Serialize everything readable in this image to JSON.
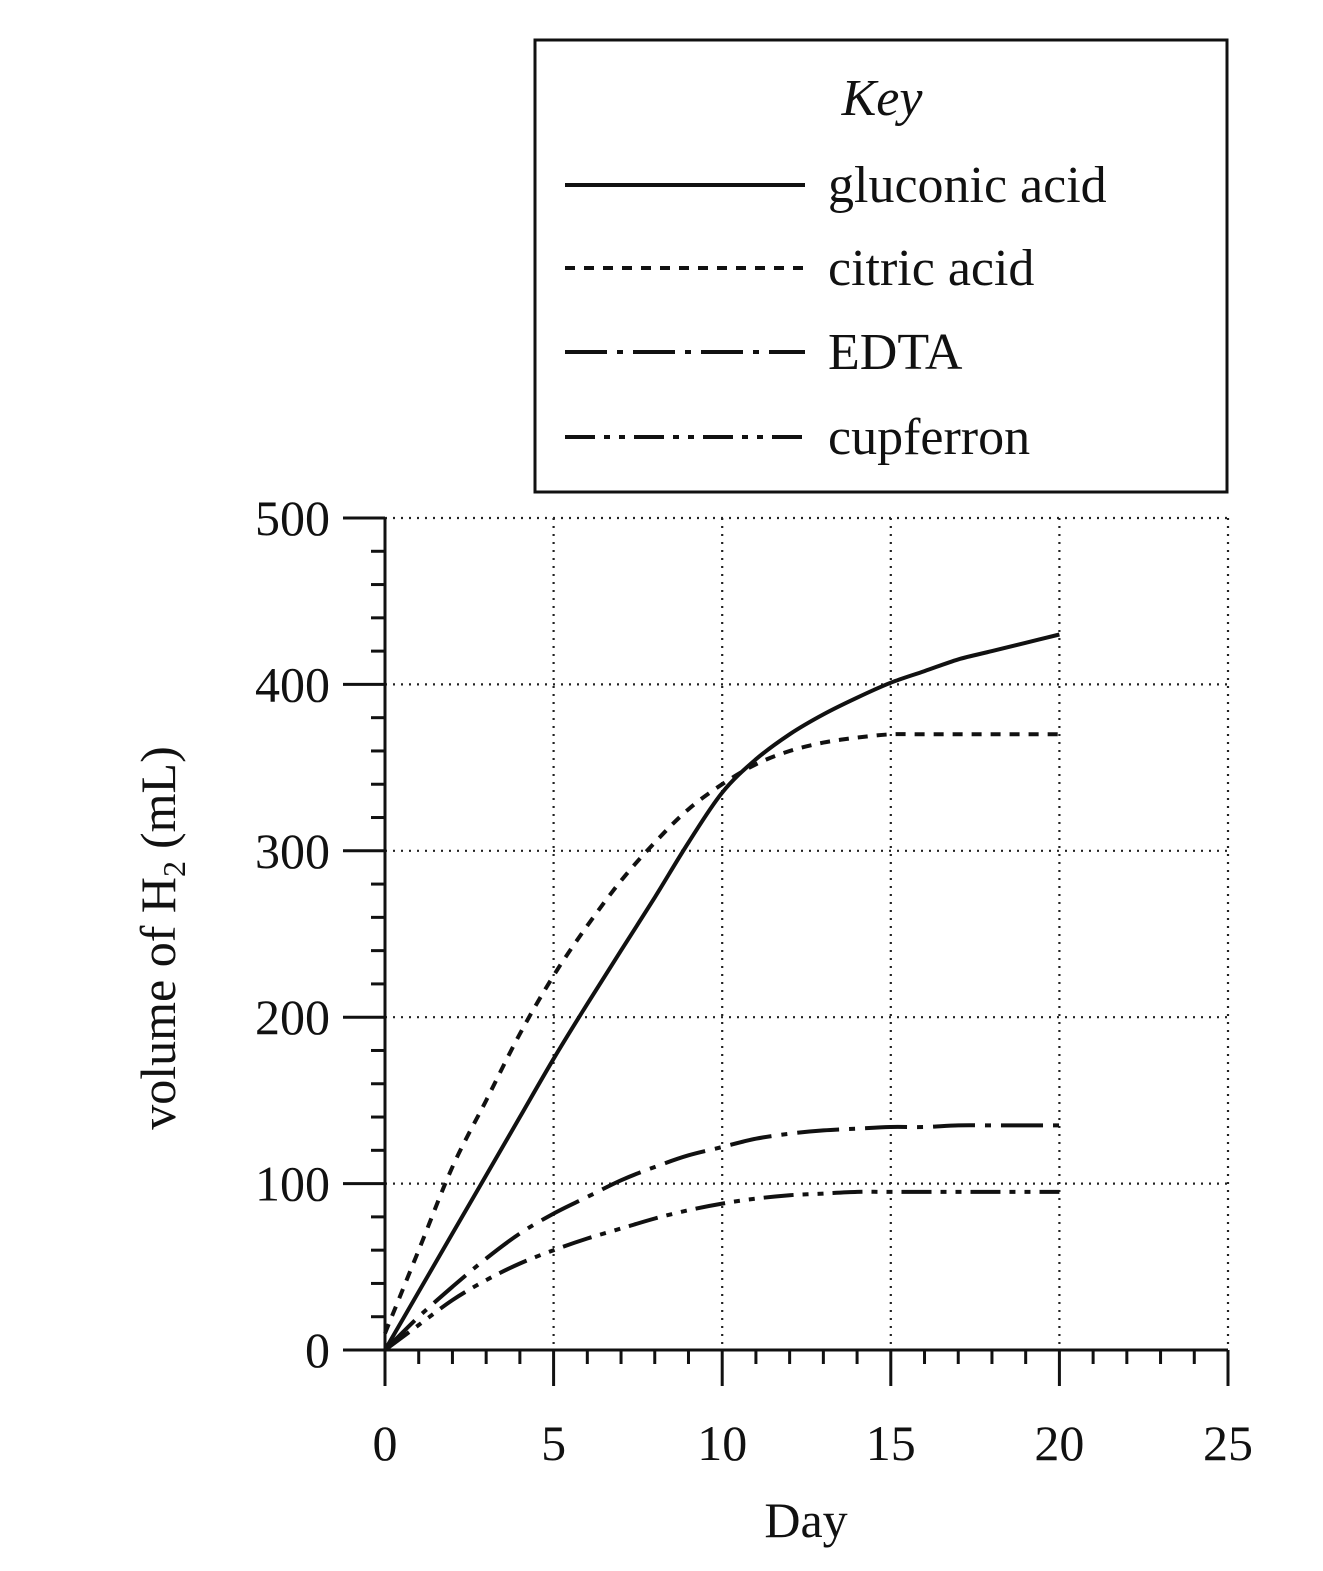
{
  "chart_data": {
    "type": "line",
    "title": "",
    "xlabel": "Day",
    "ylabel": "volume of H",
    "ylabel_subscript": "2",
    "ylabel_unit": "(mL)",
    "xlim": [
      0,
      25
    ],
    "ylim": [
      0,
      500
    ],
    "x_ticks": [
      0,
      5,
      10,
      15,
      20,
      25
    ],
    "y_ticks": [
      0,
      100,
      200,
      300,
      400,
      500
    ],
    "x_minor_step": 1,
    "y_minor_step": 20,
    "grid": true,
    "legend_title": "Key",
    "legend_position": "top-right",
    "series": [
      {
        "name": "gluconic acid",
        "style": "solid",
        "x": [
          0,
          1,
          2,
          3,
          4,
          5,
          6,
          7,
          8,
          9,
          10,
          11,
          12,
          13,
          14,
          15,
          16,
          17,
          18,
          19,
          20
        ],
        "y": [
          0,
          35,
          70,
          105,
          140,
          175,
          208,
          240,
          272,
          305,
          335,
          355,
          370,
          382,
          392,
          401,
          408,
          415,
          420,
          425,
          430
        ]
      },
      {
        "name": "citric acid",
        "style": "dotted",
        "x": [
          0,
          1,
          2,
          3,
          4,
          5,
          6,
          7,
          8,
          9,
          10,
          11,
          12,
          13,
          14,
          15,
          16,
          17,
          18,
          19,
          20
        ],
        "y": [
          10,
          60,
          110,
          150,
          190,
          225,
          255,
          282,
          305,
          325,
          340,
          352,
          360,
          365,
          368,
          370,
          370,
          370,
          370,
          370,
          370
        ]
      },
      {
        "name": "EDTA",
        "style": "dash-dot",
        "x": [
          0,
          1,
          2,
          3,
          4,
          5,
          6,
          7,
          8,
          9,
          10,
          11,
          12,
          13,
          14,
          15,
          16,
          17,
          18,
          19,
          20
        ],
        "y": [
          0,
          20,
          38,
          55,
          70,
          82,
          92,
          102,
          110,
          117,
          122,
          127,
          130,
          132,
          133,
          134,
          134,
          135,
          135,
          135,
          135
        ]
      },
      {
        "name": "cupferron",
        "style": "dash-dot-dot",
        "x": [
          0,
          1,
          2,
          3,
          4,
          5,
          6,
          7,
          8,
          9,
          10,
          11,
          12,
          13,
          14,
          15,
          16,
          17,
          18,
          19,
          20
        ],
        "y": [
          0,
          15,
          30,
          42,
          52,
          60,
          67,
          73,
          79,
          84,
          88,
          91,
          93,
          94,
          95,
          95,
          95,
          95,
          95,
          95,
          95
        ]
      }
    ]
  },
  "styles": {
    "ink": "#111111",
    "background": "#ffffff"
  }
}
